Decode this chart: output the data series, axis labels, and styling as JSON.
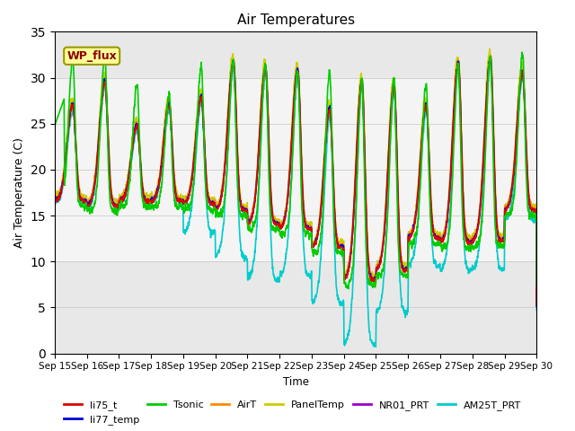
{
  "title": "Air Temperatures",
  "ylabel": "Air Temperature (C)",
  "xlabel": "Time",
  "ylim": [
    0,
    35
  ],
  "yticks": [
    0,
    5,
    10,
    15,
    20,
    25,
    30,
    35
  ],
  "background_color": "#ffffff",
  "plot_bg_color": "#e8e8e8",
  "shaded_band_lo": 10,
  "shaded_band_hi": 30,
  "wp_flux_label": "WP_flux",
  "wp_flux_box_color": "#ffff99",
  "wp_flux_text_color": "#8b0000",
  "wp_flux_border_color": "#999900",
  "series_colors": {
    "li75_t": "#dd0000",
    "li77_temp": "#0000dd",
    "Tsonic": "#00cc00",
    "AirT": "#ff8800",
    "PanelTemp": "#cccc00",
    "NR01_PRT": "#9900cc",
    "AM25T_PRT": "#00cccc"
  },
  "x_tick_labels": [
    "Sep 15",
    "Sep 16",
    "Sep 17",
    "Sep 18",
    "Sep 19",
    "Sep 20",
    "Sep 21",
    "Sep 22",
    "Sep 23",
    "Sep 24",
    "Sep 25",
    "Sep 26",
    "Sep 27",
    "Sep 28",
    "Sep 29",
    "Sep 30"
  ],
  "legend_order": [
    "li75_t",
    "li77_temp",
    "Tsonic",
    "AirT",
    "PanelTemp",
    "NR01_PRT",
    "AM25T_PRT"
  ]
}
